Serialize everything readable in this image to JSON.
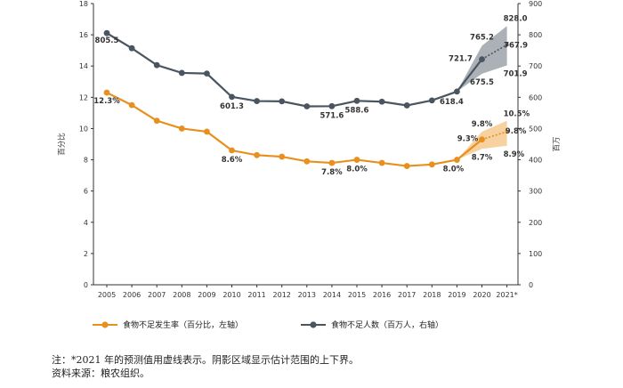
{
  "chart_data": {
    "type": "line",
    "x": [
      "2005",
      "2006",
      "2007",
      "2008",
      "2009",
      "2010",
      "2011",
      "2012",
      "2013",
      "2014",
      "2015",
      "2016",
      "2017",
      "2018",
      "2019",
      "2020",
      "2021*"
    ],
    "left_axis": {
      "label": "百分比",
      "range": [
        0,
        18
      ],
      "ticks": [
        "0",
        "2",
        "4",
        "6",
        "8",
        "10",
        "12",
        "14",
        "16",
        "18"
      ]
    },
    "right_axis": {
      "label": "百万",
      "range": [
        0,
        900
      ],
      "ticks": [
        "0",
        "100",
        "200",
        "300",
        "400",
        "500",
        "600",
        "700",
        "800",
        "900"
      ]
    },
    "series": [
      {
        "name": "食物不足发生率（百分比，左轴）",
        "axis": "left",
        "color": "#E8901F",
        "values": [
          12.3,
          11.5,
          10.5,
          10.0,
          9.8,
          8.6,
          8.3,
          8.2,
          7.9,
          7.8,
          8.0,
          7.8,
          7.6,
          7.7,
          8.0,
          9.3,
          9.8
        ],
        "projection_from": "2020",
        "range_2020": [
          8.7,
          9.8
        ],
        "range_2021": [
          8.9,
          10.5
        ]
      },
      {
        "name": "食物不足人数（百万人，右轴）",
        "axis": "right",
        "color": "#4A5560",
        "values": [
          805.5,
          757,
          703,
          678,
          676,
          601.3,
          588,
          587,
          571,
          571.6,
          588.6,
          586,
          574,
          590,
          618.4,
          721.7,
          767.9
        ],
        "projection_from": "2020",
        "range_2020": [
          675.5,
          765.2
        ],
        "range_2021": [
          701.9,
          828.0
        ]
      }
    ],
    "annotations": [
      {
        "series": 1,
        "x": "2005",
        "text": "805.5",
        "dx": 0,
        "dy": 11
      },
      {
        "series": 1,
        "x": "2010",
        "text": "601.3",
        "dx": 0,
        "dy": 13
      },
      {
        "series": 1,
        "x": "2014",
        "text": "571.6",
        "dx": 0,
        "dy": 13
      },
      {
        "series": 1,
        "x": "2015",
        "text": "588.6",
        "dx": 0,
        "dy": 13
      },
      {
        "series": 1,
        "x": "2019",
        "text": "618.4",
        "dx": -6,
        "dy": 14
      },
      {
        "series": 1,
        "x": "2020",
        "text": "721.7",
        "dx": -24,
        "dy": 2
      },
      {
        "series": 1,
        "x": "2021*",
        "text": "767.9",
        "dx": 10,
        "dy": 3
      },
      {
        "series": 0,
        "x": "2005",
        "text": "12.3%",
        "dx": 0,
        "dy": 12
      },
      {
        "series": 0,
        "x": "2010",
        "text": "8.6%",
        "dx": 0,
        "dy": 13
      },
      {
        "series": 0,
        "x": "2014",
        "text": "7.8%",
        "dx": 0,
        "dy": 13
      },
      {
        "series": 0,
        "x": "2015",
        "text": "8.0%",
        "dx": 0,
        "dy": 13
      },
      {
        "series": 0,
        "x": "2019",
        "text": "8.0%",
        "dx": -4,
        "dy": 13
      },
      {
        "series": 0,
        "x": "2020",
        "text": "9.3%",
        "dx": -16,
        "dy": 2
      },
      {
        "series": 0,
        "x": "2021*",
        "text": "9.8%",
        "dx": 10,
        "dy": 2
      }
    ],
    "range_labels": [
      {
        "series": 1,
        "x": "2020",
        "text": "765.2",
        "which": "upper",
        "dx": 0,
        "dy": -7
      },
      {
        "series": 1,
        "x": "2020",
        "text": "675.5",
        "which": "lower",
        "dx": 0,
        "dy": 12
      },
      {
        "series": 1,
        "x": "2021*",
        "text": "828.0",
        "which": "upper",
        "dx": -4,
        "dy": -6
      },
      {
        "series": 1,
        "x": "2021*",
        "text": "701.9",
        "which": "lower",
        "dx": -4,
        "dy": 12
      },
      {
        "series": 0,
        "x": "2020",
        "text": "9.8%",
        "which": "upper",
        "dx": 0,
        "dy": -6
      },
      {
        "series": 0,
        "x": "2020",
        "text": "8.7%",
        "which": "lower",
        "dx": 0,
        "dy": 12
      },
      {
        "series": 0,
        "x": "2021*",
        "text": "10.5%",
        "which": "upper",
        "dx": -4,
        "dy": -5
      },
      {
        "series": 0,
        "x": "2021*",
        "text": "8.9%",
        "which": "lower",
        "dx": -4,
        "dy": 12
      }
    ],
    "grid": false
  },
  "legend": {
    "items": [
      {
        "label": "食物不足发生率（百分比，左轴）",
        "color": "#E8901F"
      },
      {
        "label": "食物不足人数（百万人，右轴）",
        "color": "#4A5560"
      }
    ]
  },
  "notes": {
    "line1": "注：*2021 年的预测值用虚线表示。阴影区域显示估计范围的上下界。",
    "line2": "资料来源：粮农组织。"
  }
}
